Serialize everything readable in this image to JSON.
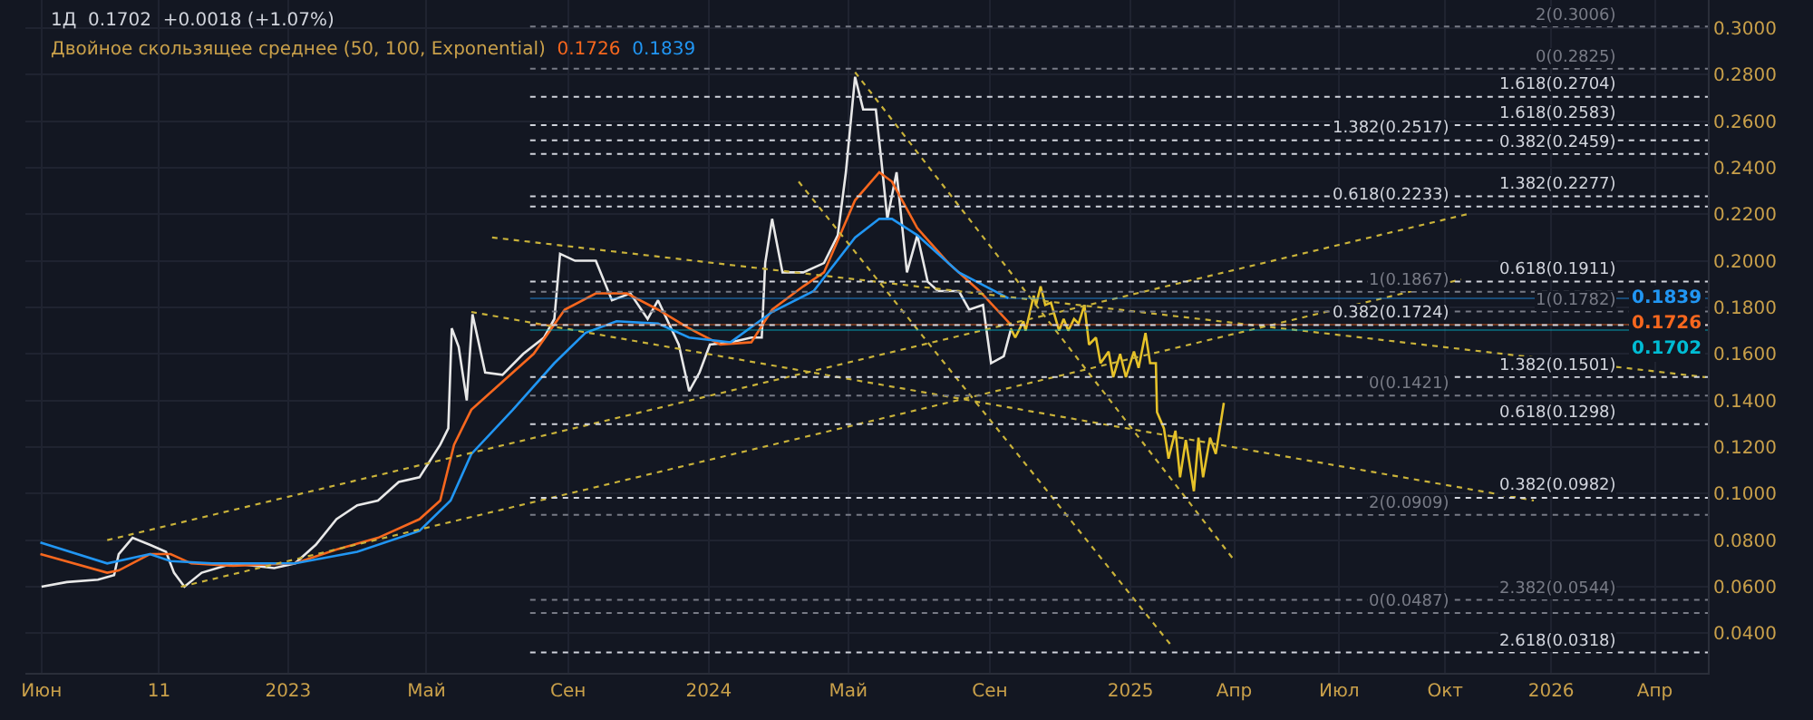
{
  "chart_data": {
    "type": "line",
    "annotations": [
      "1Д  0.1702  +0.0018 (+1.07%)",
      "Двойное скользящее среднее (50, 100, Exponential)",
      "0.1726",
      "0.1839"
    ],
    "xlim": [
      "2022-05-18",
      "2026-05-17"
    ],
    "ylim": [
      0.023,
      0.312
    ],
    "xticks": [
      {
        "value": "2022-06-01",
        "label": "Июн"
      },
      {
        "value": "2022-09-11",
        "label": "11"
      },
      {
        "value": "2023-01-01",
        "label": "2023"
      },
      {
        "value": "2023-05-01",
        "label": "Май"
      },
      {
        "value": "2023-09-01",
        "label": "Сен"
      },
      {
        "value": "2024-01-01",
        "label": "2024"
      },
      {
        "value": "2024-05-01",
        "label": "Май"
      },
      {
        "value": "2024-09-01",
        "label": "Сен"
      },
      {
        "value": "2025-01-01",
        "label": "2025"
      },
      {
        "value": "2025-04-01",
        "label": "Апр"
      },
      {
        "value": "2025-07-01",
        "label": "Июл"
      },
      {
        "value": "2025-10-01",
        "label": "Окт"
      },
      {
        "value": "2026-01-01",
        "label": "2026"
      },
      {
        "value": "2026-04-01",
        "label": "Апр"
      }
    ],
    "yticks": [
      {
        "value": 0.04,
        "label": "0.0400"
      },
      {
        "value": 0.06,
        "label": "0.0600"
      },
      {
        "value": 0.08,
        "label": "0.0800"
      },
      {
        "value": 0.1,
        "label": "0.1000"
      },
      {
        "value": 0.12,
        "label": "0.1200"
      },
      {
        "value": 0.14,
        "label": "0.1400"
      },
      {
        "value": 0.16,
        "label": "0.1600"
      },
      {
        "value": 0.18,
        "label": "0.1800"
      },
      {
        "value": 0.2,
        "label": "0.2000"
      },
      {
        "value": 0.22,
        "label": "0.2200"
      },
      {
        "value": 0.24,
        "label": "0.2400"
      },
      {
        "value": 0.26,
        "label": "0.2600"
      },
      {
        "value": 0.28,
        "label": "0.2800"
      },
      {
        "value": 0.3,
        "label": "0.3000"
      }
    ],
    "grid": true,
    "marker": "none",
    "ref_lines": [
      {
        "axis": "y",
        "value": 0.3006,
        "label": "2(0.3006)",
        "color": "#787b86",
        "line_style": "dotted"
      },
      {
        "axis": "y",
        "value": 0.1839,
        "label": "0.1839",
        "color": "#2196f3",
        "line_style": "solid"
      },
      {
        "axis": "y",
        "value": 0.1726,
        "label": "0.1726",
        "color": "#f7671e",
        "line_style": "solid"
      },
      {
        "axis": "y",
        "value": 0.1702,
        "label": "0.1702",
        "color": "#00bcd4",
        "line_style": "solid"
      },
      {
        "axis": "y",
        "value": 0.2825,
        "label": "0(0.2825)",
        "color": "#787b86",
        "line_style": "dotted"
      },
      {
        "axis": "y",
        "value": 0.2704,
        "label": "1.618(0.2704)",
        "color": "#d1d4dc",
        "line_style": "dotted"
      },
      {
        "axis": "y",
        "value": 0.2583,
        "label": "1.618(0.2583)",
        "color": "#d1d4dc",
        "line_style": "dotted"
      },
      {
        "axis": "y",
        "value": 0.2517,
        "label": "1.382(0.2517)",
        "color": "#d1d4dc",
        "line_style": "dotted"
      },
      {
        "axis": "y",
        "value": 0.2459,
        "label": "0.382(0.2459)",
        "color": "#d1d4dc",
        "line_style": "dotted"
      },
      {
        "axis": "y",
        "value": 0.2277,
        "label": "1.382(0.2277)",
        "color": "#d1d4dc",
        "line_style": "dotted"
      },
      {
        "axis": "y",
        "value": 0.2233,
        "label": "0.618(0.2233)",
        "color": "#d1d4dc",
        "line_style": "dotted"
      },
      {
        "axis": "y",
        "value": 0.1911,
        "label": "0.618(0.1911)",
        "color": "#d1d4dc",
        "line_style": "dotted"
      },
      {
        "axis": "y",
        "value": 0.1867,
        "label": "1(0.1867)",
        "color": "#787b86",
        "line_style": "dotted"
      },
      {
        "axis": "y",
        "value": 0.1782,
        "label": "1(0.1782)",
        "color": "#787b86",
        "line_style": "dotted"
      },
      {
        "axis": "y",
        "value": 0.1724,
        "label": "0.382(0.1724)",
        "color": "#d1d4dc",
        "line_style": "dotted"
      },
      {
        "axis": "y",
        "value": 0.1501,
        "label": "1.382(0.1501)",
        "color": "#d1d4dc",
        "line_style": "dotted"
      },
      {
        "axis": "y",
        "value": 0.1421,
        "label": "0(0.1421)",
        "color": "#787b86",
        "line_style": "dotted"
      },
      {
        "axis": "y",
        "value": 0.1298,
        "label": "0.618(0.1298)",
        "color": "#d1d4dc",
        "line_style": "dotted"
      },
      {
        "axis": "y",
        "value": 0.0982,
        "label": "0.382(0.0982)",
        "color": "#d1d4dc",
        "line_style": "dotted"
      },
      {
        "axis": "y",
        "value": 0.0909,
        "label": "2(0.0909)",
        "color": "#787b86",
        "line_style": "dotted"
      },
      {
        "axis": "y",
        "value": 0.0544,
        "label": "2.382(0.0544)",
        "color": "#787b86",
        "line_style": "dotted"
      },
      {
        "axis": "y",
        "value": 0.0487,
        "label": "0(0.0487)",
        "color": "#787b86",
        "line_style": "dotted"
      },
      {
        "axis": "y",
        "value": 0.0318,
        "label": "2.618(0.0318)",
        "color": "#d1d4dc",
        "line_style": "dotted"
      }
    ],
    "series": [
      {
        "color": "#e8e8e8",
        "line_style": "solid",
        "x": [
          "2022-06-01",
          "2022-06-23",
          "2022-07-20",
          "2022-08-03",
          "2022-08-07",
          "2022-08-19",
          "2022-09-03",
          "2022-09-17",
          "2022-09-24",
          "2022-10-03",
          "2022-10-18",
          "2022-11-14",
          "2022-12-20",
          "2023-01-07",
          "2023-01-25",
          "2023-02-12",
          "2023-03-02",
          "2023-03-20",
          "2023-04-07",
          "2023-04-25",
          "2023-05-13",
          "2023-05-20",
          "2023-05-23",
          "2023-05-29",
          "2023-06-05",
          "2023-06-10",
          "2023-06-21",
          "2023-07-06",
          "2023-07-24",
          "2023-08-11",
          "2023-08-20",
          "2023-08-25",
          "2023-09-07",
          "2023-09-25",
          "2023-10-09",
          "2023-10-25",
          "2023-11-09",
          "2023-11-18",
          "2023-12-06",
          "2023-12-15",
          "2023-12-24",
          "2024-01-02",
          "2024-01-20",
          "2024-02-07",
          "2024-02-16",
          "2024-02-19",
          "2024-02-25",
          "2024-03-05",
          "2024-03-23",
          "2024-04-10",
          "2024-04-22",
          "2024-04-29",
          "2024-05-07",
          "2024-05-14",
          "2024-05-25",
          "2024-05-30",
          "2024-06-04",
          "2024-06-12",
          "2024-06-21",
          "2024-06-30",
          "2024-07-09",
          "2024-07-18",
          "2024-08-05",
          "2024-08-14",
          "2024-08-26",
          "2024-09-02",
          "2024-09-13",
          "2024-09-19"
        ],
        "values": [
          0.06,
          0.062,
          0.063,
          0.065,
          0.074,
          0.081,
          0.078,
          0.075,
          0.066,
          0.06,
          0.066,
          0.07,
          0.068,
          0.07,
          0.078,
          0.089,
          0.095,
          0.097,
          0.105,
          0.107,
          0.121,
          0.128,
          0.171,
          0.163,
          0.14,
          0.177,
          0.152,
          0.151,
          0.16,
          0.167,
          0.175,
          0.203,
          0.2,
          0.2,
          0.183,
          0.186,
          0.175,
          0.183,
          0.164,
          0.144,
          0.152,
          0.164,
          0.165,
          0.167,
          0.167,
          0.199,
          0.218,
          0.195,
          0.195,
          0.199,
          0.211,
          0.238,
          0.279,
          0.265,
          0.265,
          0.242,
          0.218,
          0.238,
          0.195,
          0.211,
          0.191,
          0.187,
          0.187,
          0.179,
          0.181,
          0.156,
          0.159,
          0.1702
        ]
      },
      {
        "color": "#f7671e",
        "line_style": "solid",
        "x": [
          "2022-05-31",
          "2022-07-28",
          "2022-08-07",
          "2022-09-03",
          "2022-09-21",
          "2022-10-09",
          "2022-11-14",
          "2023-01-07",
          "2023-02-12",
          "2023-03-20",
          "2023-04-25",
          "2023-05-13",
          "2023-05-25",
          "2023-06-09",
          "2023-07-06",
          "2023-08-02",
          "2023-08-29",
          "2023-09-25",
          "2023-10-22",
          "2023-11-18",
          "2023-12-15",
          "2024-01-11",
          "2024-02-07",
          "2024-02-25",
          "2024-03-23",
          "2024-04-10",
          "2024-05-07",
          "2024-05-28",
          "2024-06-08",
          "2024-06-30",
          "2024-07-27",
          "2024-08-23",
          "2024-09-19"
        ],
        "values": [
          0.074,
          0.066,
          0.067,
          0.074,
          0.074,
          0.07,
          0.069,
          0.07,
          0.076,
          0.081,
          0.089,
          0.097,
          0.121,
          0.136,
          0.148,
          0.16,
          0.179,
          0.186,
          0.186,
          0.179,
          0.171,
          0.164,
          0.165,
          0.179,
          0.189,
          0.195,
          0.226,
          0.238,
          0.234,
          0.214,
          0.199,
          0.187,
          0.1726
        ]
      },
      {
        "color": "#2196f3",
        "line_style": "solid",
        "x": [
          "2022-05-31",
          "2022-07-28",
          "2022-09-03",
          "2022-09-21",
          "2022-10-27",
          "2023-01-07",
          "2023-03-02",
          "2023-04-25",
          "2023-05-22",
          "2023-06-09",
          "2023-07-15",
          "2023-08-20",
          "2023-09-16",
          "2023-10-13",
          "2023-11-18",
          "2023-12-15",
          "2024-01-20",
          "2024-02-25",
          "2024-04-01",
          "2024-05-07",
          "2024-05-28",
          "2024-06-08",
          "2024-06-30",
          "2024-08-05",
          "2024-09-17"
        ],
        "values": [
          0.079,
          0.07,
          0.074,
          0.071,
          0.07,
          0.07,
          0.075,
          0.084,
          0.097,
          0.117,
          0.136,
          0.156,
          0.169,
          0.174,
          0.173,
          0.167,
          0.165,
          0.178,
          0.187,
          0.21,
          0.218,
          0.218,
          0.211,
          0.195,
          0.1839
        ]
      },
      {
        "color": "#e6c229",
        "line_style": "solid",
        "x": [
          "2024-09-19",
          "2024-09-23",
          "2024-09-30",
          "2024-10-02",
          "2024-10-09",
          "2024-10-11",
          "2024-10-15",
          "2024-10-19",
          "2024-10-24",
          "2024-10-31",
          "2024-11-04",
          "2024-11-08",
          "2024-11-13",
          "2024-11-17",
          "2024-11-22",
          "2024-11-26",
          "2024-12-02",
          "2024-12-06",
          "2024-12-13",
          "2024-12-17",
          "2024-12-23",
          "2024-12-28",
          "2025-01-04",
          "2025-01-08",
          "2025-01-14",
          "2025-01-18",
          "2025-01-23",
          "2025-01-24",
          "2025-01-30",
          "2025-02-03",
          "2025-02-09",
          "2025-02-13",
          "2025-02-18",
          "2025-02-25",
          "2025-03-01",
          "2025-03-05",
          "2025-03-11",
          "2025-03-16",
          "2025-03-23"
        ],
        "values": [
          0.171,
          0.167,
          0.174,
          0.17,
          0.185,
          0.181,
          0.189,
          0.181,
          0.182,
          0.17,
          0.175,
          0.17,
          0.175,
          0.173,
          0.181,
          0.164,
          0.167,
          0.156,
          0.161,
          0.15,
          0.16,
          0.15,
          0.161,
          0.154,
          0.169,
          0.156,
          0.156,
          0.135,
          0.128,
          0.115,
          0.127,
          0.107,
          0.123,
          0.101,
          0.124,
          0.107,
          0.124,
          0.117,
          0.139
        ]
      },
      {
        "color": "#c9b23a",
        "line_style": "dotted",
        "x": [
          "2022-07-28",
          "2025-10-20"
        ],
        "values": [
          0.08,
          0.22
        ]
      },
      {
        "color": "#c9b23a",
        "line_style": "dotted",
        "x": [
          "2022-09-30",
          "2025-10-15"
        ],
        "values": [
          0.06,
          0.192
        ]
      },
      {
        "color": "#c9b23a",
        "line_style": "dotted",
        "x": [
          "2023-06-27",
          "2026-05-15"
        ],
        "values": [
          0.21,
          0.15
        ]
      },
      {
        "color": "#c9b23a",
        "line_style": "dotted",
        "x": [
          "2023-06-09",
          "2025-12-17"
        ],
        "values": [
          0.178,
          0.097
        ]
      },
      {
        "color": "#c9b23a",
        "line_style": "dotted",
        "x": [
          "2024-05-07",
          "2025-03-31"
        ],
        "values": [
          0.281,
          0.072
        ]
      },
      {
        "color": "#c9b23a",
        "line_style": "dotted",
        "x": [
          "2024-03-19",
          "2025-02-05"
        ],
        "values": [
          0.234,
          0.035
        ]
      }
    ]
  }
}
